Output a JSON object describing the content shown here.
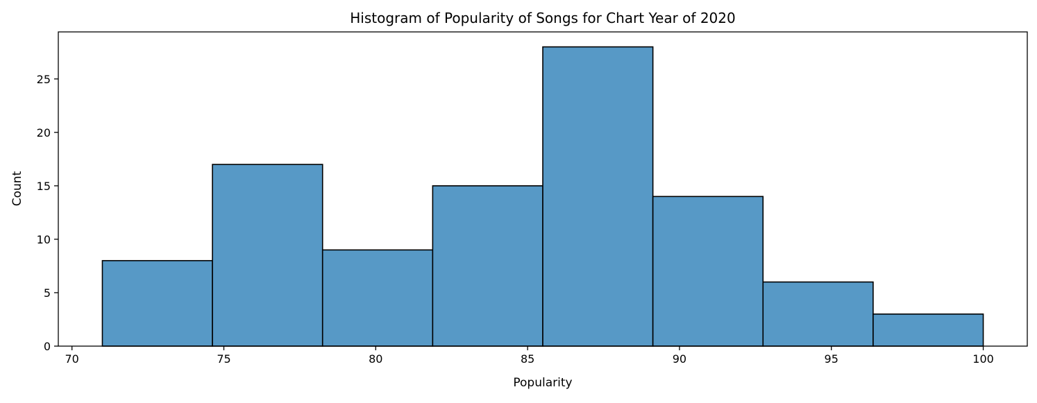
{
  "chart_data": {
    "type": "bar",
    "title": "Histogram of Popularity of Songs for Chart Year of 2020",
    "xlabel": "Popularity",
    "ylabel": "Count",
    "bin_edges": [
      71.0,
      74.625,
      78.25,
      81.875,
      85.5,
      89.125,
      92.75,
      96.375,
      100.0
    ],
    "values": [
      8,
      17,
      9,
      15,
      28,
      14,
      6,
      3
    ],
    "xlim": [
      69.55,
      101.45
    ],
    "ylim": [
      0,
      29.4
    ],
    "xticks": [
      70,
      75,
      80,
      85,
      90,
      95,
      100
    ],
    "yticks": [
      0,
      5,
      10,
      15,
      20,
      25
    ],
    "grid": false,
    "bar_color": "#5799c6",
    "edge_color": "#000000"
  }
}
